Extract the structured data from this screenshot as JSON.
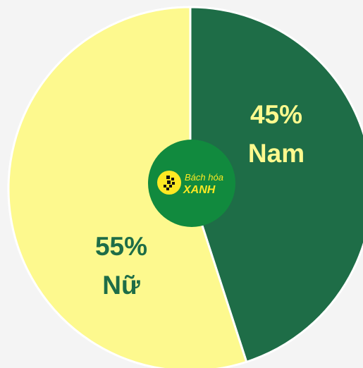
{
  "chart_data": {
    "type": "pie",
    "categories": [
      "Nam",
      "Nữ"
    ],
    "values": [
      45,
      55
    ],
    "value_labels": [
      "45%",
      "55%"
    ],
    "colors": [
      "#1e6d47",
      "#fdf98e"
    ]
  },
  "logo": {
    "line1": "Bách hóa",
    "line2": "XANH"
  }
}
